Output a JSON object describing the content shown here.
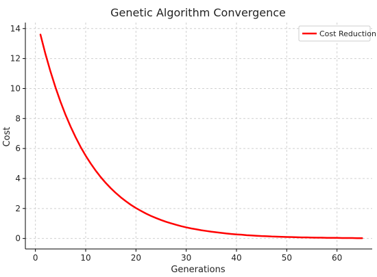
{
  "chart_data": {
    "type": "line",
    "title": "Genetic Algorithm Convergence",
    "xlabel": "Generations",
    "ylabel": "Cost",
    "xlim": [
      -2,
      67
    ],
    "ylim": [
      -0.7,
      14.4
    ],
    "xticks": [
      0,
      10,
      20,
      30,
      40,
      50,
      60
    ],
    "yticks": [
      0,
      2,
      4,
      6,
      8,
      10,
      12,
      14
    ],
    "grid": true,
    "legend_position": "top-right",
    "series": [
      {
        "name": "Cost Reduction",
        "color": "#ff0000",
        "x": [
          1,
          2,
          3,
          4,
          5,
          6,
          7,
          8,
          9,
          10,
          11,
          12,
          13,
          14,
          15,
          16,
          17,
          18,
          19,
          20,
          21,
          22,
          23,
          24,
          25,
          26,
          27,
          28,
          29,
          30,
          31,
          32,
          33,
          34,
          35,
          36,
          37,
          38,
          39,
          40,
          41,
          42,
          43,
          44,
          45,
          46,
          47,
          48,
          49,
          50,
          51,
          52,
          53,
          54,
          55,
          56,
          57,
          58,
          59,
          60,
          61,
          62,
          63,
          64,
          65
        ],
        "y": [
          13.6,
          12.3,
          11.13,
          10.07,
          9.11,
          8.24,
          7.46,
          6.75,
          6.1,
          5.52,
          5.0,
          4.52,
          4.09,
          3.7,
          3.35,
          3.03,
          2.74,
          2.48,
          2.24,
          2.03,
          1.84,
          1.66,
          1.5,
          1.36,
          1.23,
          1.11,
          1.01,
          0.91,
          0.82,
          0.74,
          0.67,
          0.61,
          0.55,
          0.5,
          0.45,
          0.41,
          0.37,
          0.33,
          0.3,
          0.27,
          0.25,
          0.22,
          0.2,
          0.18,
          0.16,
          0.15,
          0.13,
          0.12,
          0.11,
          0.1,
          0.09,
          0.08,
          0.07,
          0.07,
          0.06,
          0.05,
          0.05,
          0.04,
          0.04,
          0.04,
          0.03,
          0.03,
          0.03,
          0.02,
          0.02
        ]
      }
    ]
  }
}
